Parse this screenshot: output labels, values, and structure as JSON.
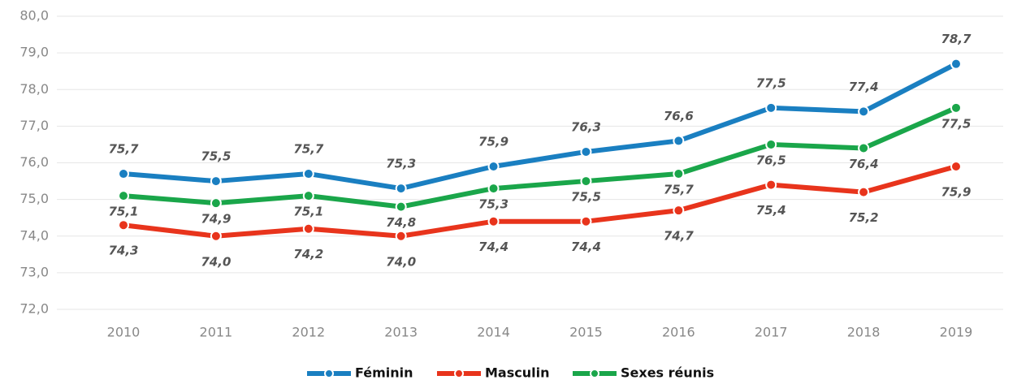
{
  "chart_data": {
    "type": "line",
    "categories": [
      "2010",
      "2011",
      "2012",
      "2013",
      "2014",
      "2015",
      "2016",
      "2017",
      "2018",
      "2019"
    ],
    "series": [
      {
        "name": "Féminin",
        "color": "#1a7fc1",
        "values": [
          75.7,
          75.5,
          75.7,
          75.3,
          75.9,
          76.3,
          76.6,
          77.5,
          77.4,
          78.7
        ],
        "value_labels": [
          "75,7",
          "75,5",
          "75,7",
          "75,3",
          "75,9",
          "76,3",
          "76,6",
          "77,5",
          "77,4",
          "78,7"
        ]
      },
      {
        "name": "Masculin",
        "color": "#e8341c",
        "values": [
          74.3,
          74.0,
          74.2,
          74.0,
          74.4,
          74.4,
          74.7,
          75.4,
          75.2,
          75.9
        ],
        "value_labels": [
          "74,3",
          "74,0",
          "74,2",
          "74,0",
          "74,4",
          "74,4",
          "74,7",
          "75,4",
          "75,2",
          "75,9"
        ]
      },
      {
        "name": "Sexes réunis",
        "color": "#1aa64a",
        "values": [
          75.1,
          74.9,
          75.1,
          74.8,
          75.3,
          75.5,
          75.7,
          76.5,
          76.4,
          77.5
        ],
        "value_labels": [
          "75,1",
          "74,9",
          "75,1",
          "74,8",
          "75,3",
          "75,5",
          "75,7",
          "76,5",
          "76,4",
          "77,5"
        ]
      }
    ],
    "ylim": [
      72,
      80
    ],
    "yticks": [
      {
        "value": 72,
        "label": "72,0"
      },
      {
        "value": 73,
        "label": "73,0"
      },
      {
        "value": 74,
        "label": "74,0"
      },
      {
        "value": 75,
        "label": "75,0"
      },
      {
        "value": 76,
        "label": "76,0"
      },
      {
        "value": 77,
        "label": "77,0"
      },
      {
        "value": 78,
        "label": "78,0"
      },
      {
        "value": 79,
        "label": "79,0"
      },
      {
        "value": 80,
        "label": "80,0"
      }
    ],
    "grid": true,
    "legend": "bottom"
  }
}
